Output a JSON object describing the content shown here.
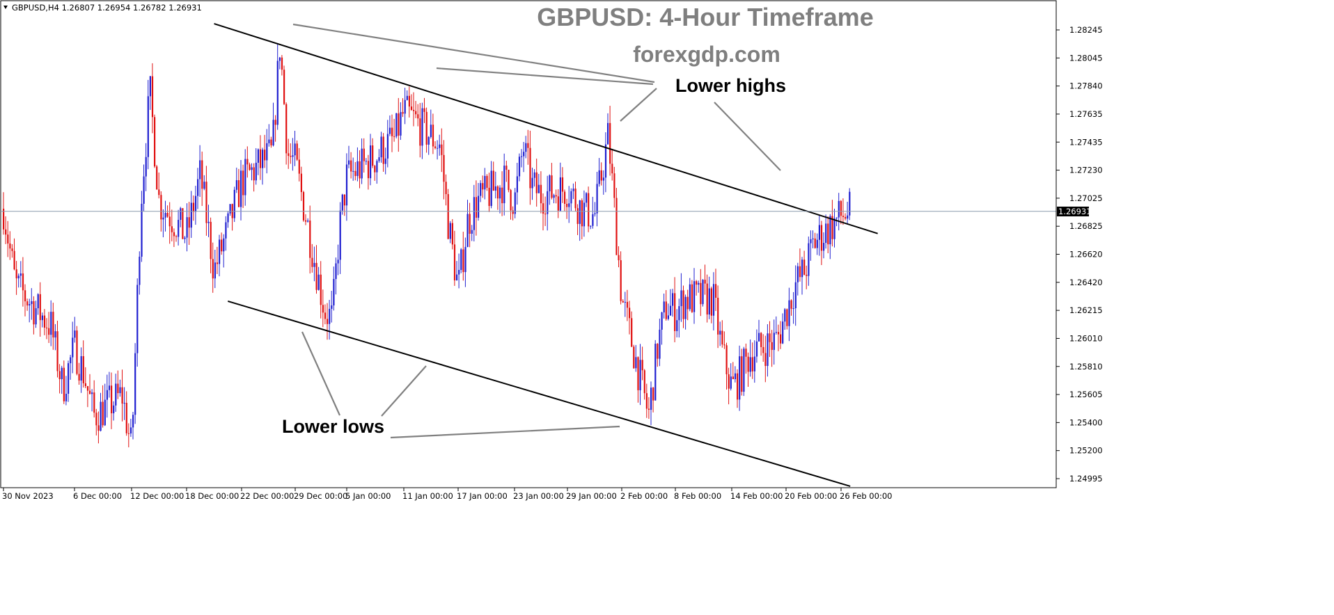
{
  "header": {
    "symbol_ohlc": "GBPUSD,H4  1.26807 1.26954 1.26782 1.26931"
  },
  "chart_data": {
    "type": "candlestick",
    "title": "GBPUSD: 4-Hour Timeframe",
    "subtitle": "forexgdp.com",
    "annotations": [
      "Lower highs",
      "Lower lows"
    ],
    "current_price": "1.26931",
    "ylim": [
      1.2485,
      1.2837
    ],
    "y_ticks": [
      "1.28245",
      "1.28045",
      "1.27840",
      "1.27635",
      "1.27435",
      "1.27230",
      "1.27025",
      "1.26825",
      "1.26620",
      "1.26420",
      "1.26215",
      "1.26010",
      "1.25810",
      "1.25605",
      "1.25400",
      "1.25200",
      "1.24995"
    ],
    "x_ticks": [
      "30 Nov 2023",
      "6 Dec 00:00",
      "12 Dec 00:00",
      "18 Dec 00:00",
      "22 Dec 00:00",
      "29 Dec 00:00",
      "5 Jan 00:00",
      "11 Jan 00:00",
      "17 Jan 00:00",
      "23 Jan 00:00",
      "29 Jan 00:00",
      "2 Feb 00:00",
      "8 Feb 00:00",
      "14 Feb 00:00",
      "20 Feb 00:00",
      "26 Feb 00:00"
    ],
    "trendlines": [
      {
        "role": "upper channel line",
        "from": [
          "20 Dec 2023",
          1.2829
        ],
        "to": [
          "1 Mar 2024",
          1.2677
        ]
      },
      {
        "role": "lower channel line",
        "from": [
          "21 Dec 2023",
          1.2628
        ],
        "to": [
          "27 Feb 2024",
          1.2494
        ]
      }
    ],
    "close_path": [
      [
        "30 Nov 2023",
        1.2695
      ],
      [
        "1 Dec",
        1.264
      ],
      [
        "4 Dec",
        1.261
      ],
      [
        "5 Dec",
        1.2565
      ],
      [
        "6 Dec",
        1.2595
      ],
      [
        "7 Dec",
        1.2575
      ],
      [
        "8 Dec",
        1.2545
      ],
      [
        "11 Dec",
        1.256
      ],
      [
        "12 Dec",
        1.252
      ],
      [
        "13 Dec",
        1.27
      ],
      [
        "14 Dec",
        1.278
      ],
      [
        "15 Dec",
        1.27
      ],
      [
        "18 Dec",
        1.2675
      ],
      [
        "19 Dec",
        1.272
      ],
      [
        "20 Dec",
        1.265
      ],
      [
        "21 Dec",
        1.268
      ],
      [
        "22 Dec",
        1.2715
      ],
      [
        "26 Dec",
        1.2735
      ],
      [
        "27 Dec",
        1.2815
      ],
      [
        "28 Dec",
        1.2735
      ],
      [
        "29 Dec",
        1.2728
      ],
      [
        "2 Jan",
        1.2621
      ],
      [
        "3 Jan",
        1.2615
      ],
      [
        "4 Jan",
        1.268
      ],
      [
        "5 Jan",
        1.2718
      ],
      [
        "8 Jan",
        1.2732
      ],
      [
        "9 Jan",
        1.274
      ],
      [
        "10 Jan",
        1.2745
      ],
      [
        "11 Jan",
        1.2765
      ],
      [
        "12 Jan",
        1.276
      ],
      [
        "15 Jan",
        1.2741
      ],
      [
        "16 Jan",
        1.268
      ],
      [
        "17 Jan",
        1.2637
      ],
      [
        "18 Jan",
        1.2685
      ],
      [
        "19 Jan",
        1.27
      ],
      [
        "22 Jan",
        1.2715
      ],
      [
        "23 Jan",
        1.27
      ],
      [
        "24 Jan",
        1.274
      ],
      [
        "25 Jan",
        1.2711
      ],
      [
        "26 Jan",
        1.2705
      ],
      [
        "29 Jan",
        1.271
      ],
      [
        "30 Jan",
        1.2695
      ],
      [
        "31 Jan",
        1.269
      ],
      [
        "1 Feb",
        1.2748
      ],
      [
        "2 Feb",
        1.263
      ],
      [
        "5 Feb",
        1.2545
      ],
      [
        "6 Feb",
        1.2595
      ],
      [
        "7 Feb",
        1.2625
      ],
      [
        "8 Feb",
        1.262
      ],
      [
        "9 Feb",
        1.263
      ],
      [
        "12 Feb",
        1.263
      ],
      [
        "13 Feb",
        1.259
      ],
      [
        "14 Feb",
        1.2565
      ],
      [
        "15 Feb",
        1.2575
      ],
      [
        "16 Feb",
        1.259
      ],
      [
        "19 Feb",
        1.26
      ],
      [
        "20 Feb",
        1.262
      ],
      [
        "21 Feb",
        1.264
      ],
      [
        "22 Feb",
        1.265
      ],
      [
        "23 Feb",
        1.267
      ],
      [
        "26 Feb",
        1.269
      ],
      [
        "27 Feb",
        1.2693
      ]
    ],
    "colors": {
      "bull": "#1f1fd0",
      "bear": "#e01010",
      "trendline": "#000000",
      "pointer": "#808080",
      "price_line": "#8c9bad"
    }
  }
}
